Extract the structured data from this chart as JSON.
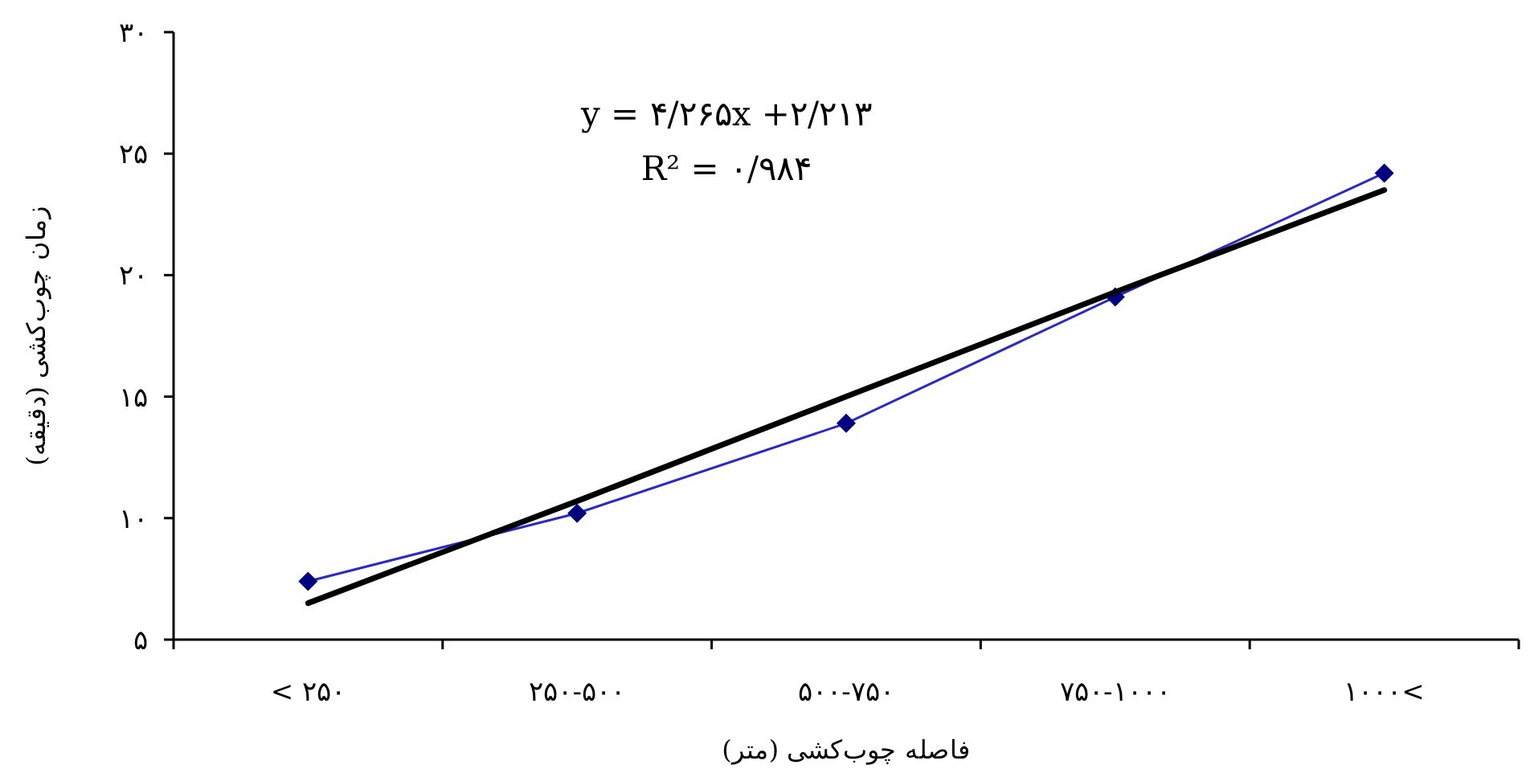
{
  "chart_data": {
    "type": "line",
    "categories": [
      "< ۲۵۰",
      "۲۵۰-۵۰۰",
      "۵۰۰-۷۵۰",
      "۷۵۰-۱۰۰۰",
      "۱۰۰۰<"
    ],
    "series": [
      {
        "color": "#2b2bbf",
        "marker": "diamond",
        "values": [
          7.4,
          10.2,
          13.9,
          19.1,
          24.2
        ]
      },
      {
        "color": "#000000",
        "marker": "none",
        "values": [
          6.5,
          10.7,
          15.0,
          19.3,
          23.5
        ]
      }
    ],
    "xlabel": "فاصله چوب‌کشی (متر)",
    "ylabel": "زمان چوب‌کشی (دقیقه)",
    "ylim": [
      5,
      30
    ],
    "yticks": [
      {
        "value": 5,
        "label": "۵"
      },
      {
        "value": 10,
        "label": "۱۰"
      },
      {
        "value": 15,
        "label": "۱۵"
      },
      {
        "value": 20,
        "label": "۲۰"
      },
      {
        "value": 25,
        "label": "۲۵"
      },
      {
        "value": 30,
        "label": "۳۰"
      }
    ],
    "annotations": [
      "y = ۴/۲۶۵x +۲/۲۱۳",
      "R² = ۰/۹۸۴"
    ],
    "grid": false
  }
}
